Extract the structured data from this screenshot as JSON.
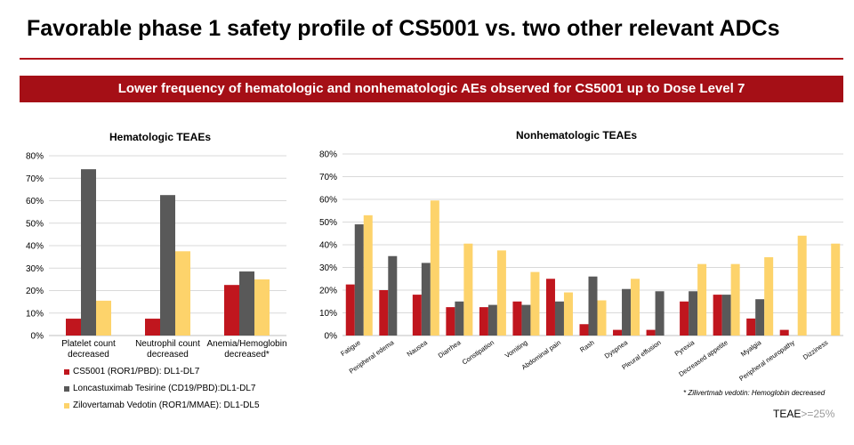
{
  "header": {
    "title": "Favorable phase 1 safety profile of CS5001 vs. two other relevant ADCs",
    "banner": "Lower frequency of hematologic and nonhematologic AEs observed for CS5001 up to Dose Level 7"
  },
  "colors": {
    "accent": "#a50f16",
    "cs5001": "#c0161e",
    "loncastuximab": "#595959",
    "zilovertamab": "#fdd36b"
  },
  "legend": {
    "items": [
      {
        "label": "CS5001 (ROR1/PBD): DL1-DL7",
        "color": "#c0161e"
      },
      {
        "label": "Loncastuximab Tesirine (CD19/PBD):DL1-DL7",
        "color": "#595959"
      },
      {
        "label": "Zilovertamab Vedotin (ROR1/MMAE): DL1-DL5",
        "color": "#fdd36b"
      }
    ]
  },
  "footnote": "* Zilivertmab vedotin: Hemoglobin decreased",
  "teae_note": {
    "prefix": "TEAE",
    "suffix": ">=25%"
  },
  "chart_data": [
    {
      "type": "bar",
      "title": "Hematologic TEAEs",
      "categories": [
        "Platelet count decreased",
        "Neutrophil count decreased",
        "Anemia/Hemoglobin decreased*"
      ],
      "category_lines": [
        [
          "Platelet count",
          "decreased"
        ],
        [
          "Neutrophil count",
          "decreased"
        ],
        [
          "Anemia/Hemoglobin",
          "decreased*"
        ]
      ],
      "yticks": [
        "0%",
        "10%",
        "20%",
        "30%",
        "40%",
        "50%",
        "60%",
        "70%",
        "80%"
      ],
      "ylim": [
        0,
        80
      ],
      "grid": true,
      "legend_position": "bottom-left",
      "series": [
        {
          "name": "CS5001 (ROR1/PBD): DL1-DL7",
          "values": [
            7.5,
            7.5,
            22.5
          ]
        },
        {
          "name": "Loncastuximab Tesirine (CD19/PBD):DL1-DL7",
          "values": [
            74,
            62.5,
            28.5
          ]
        },
        {
          "name": "Zilovertamab Vedotin (ROR1/MMAE): DL1-DL5",
          "values": [
            15.5,
            37.5,
            25
          ]
        }
      ]
    },
    {
      "type": "bar",
      "title": "Nonhematologic TEAEs",
      "categories": [
        "Fatigue",
        "Peripheral edema",
        "Nausea",
        "Diarrhea",
        "Constipation",
        "Vomiting",
        "Abdominal pain",
        "Rash",
        "Dyspnea",
        "Pleural effusion",
        "Pyrexia",
        "Decreased appetite",
        "Myalgia",
        "Peripheral neuropathy",
        "Dizziness"
      ],
      "yticks": [
        "0%",
        "10%",
        "20%",
        "30%",
        "40%",
        "50%",
        "60%",
        "70%",
        "80%"
      ],
      "ylim": [
        0,
        80
      ],
      "grid": true,
      "series": [
        {
          "name": "CS5001 (ROR1/PBD): DL1-DL7",
          "values": [
            22.5,
            20,
            18,
            12.5,
            12.5,
            15,
            25,
            5,
            2.5,
            2.5,
            15,
            18,
            7.5,
            2.5,
            0
          ]
        },
        {
          "name": "Loncastuximab Tesirine (CD19/PBD):DL1-DL7",
          "values": [
            49,
            35,
            32,
            15,
            13.5,
            13.5,
            15,
            26,
            20.5,
            19.5,
            19.5,
            18,
            16,
            0,
            0
          ]
        },
        {
          "name": "Zilovertamab Vedotin (ROR1/MMAE): DL1-DL5",
          "values": [
            53,
            0,
            59.5,
            40.5,
            37.5,
            28,
            19,
            15.5,
            25,
            0,
            31.5,
            31.5,
            34.5,
            44,
            40.5
          ]
        }
      ]
    }
  ]
}
